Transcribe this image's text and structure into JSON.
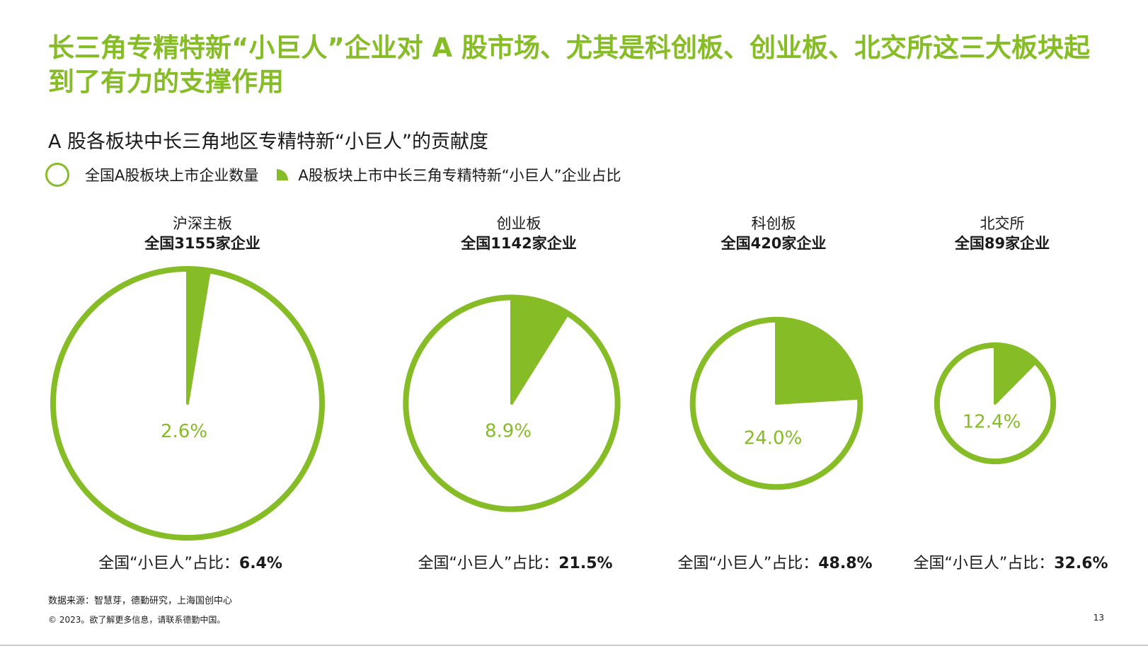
{
  "title": "长三角专精特新“小巨人”企业对 A 股市场、尤其是科创板、创业板、北交所这三大板块起到了有力的支撑作用",
  "chart_data": {
    "type": "pie",
    "title": "A 股各板块中长三角地区专精特新“小巨人”的贡献度",
    "legend": [
      "全国A股板块上市企业数量",
      "A股板块上市中长三角专精特新“小巨人”企业占比"
    ],
    "colors": {
      "accent": "#86BC25"
    },
    "boards": [
      {
        "name": "沪深主板",
        "companies_label": "全国3155家企业",
        "companies": 3155,
        "share": 2.6,
        "share_label": "2.6%",
        "national_prefix": "全国“小巨人”占比：",
        "national_share": "6.4%"
      },
      {
        "name": "创业板",
        "companies_label": "全国1142家企业",
        "companies": 1142,
        "share": 8.9,
        "share_label": "8.9%",
        "national_prefix": "全国“小巨人”占比：",
        "national_share": "21.5%"
      },
      {
        "name": "科创板",
        "companies_label": "全国420家企业",
        "companies": 420,
        "share": 24.0,
        "share_label": "24.0%",
        "national_prefix": "全国“小巨人”占比：",
        "national_share": "48.8%"
      },
      {
        "name": "北交所",
        "companies_label": "全国89家企业",
        "companies": 89,
        "share": 12.4,
        "share_label": "12.4%",
        "national_prefix": "全国“小巨人”占比：",
        "national_share": "32.6%"
      }
    ]
  },
  "footer": {
    "source": "数据来源：智慧芽，德勤研究，上海国创中心",
    "copyright": "© 2023。欲了解更多信息，请联系德勤中国。",
    "page_number": "13"
  }
}
